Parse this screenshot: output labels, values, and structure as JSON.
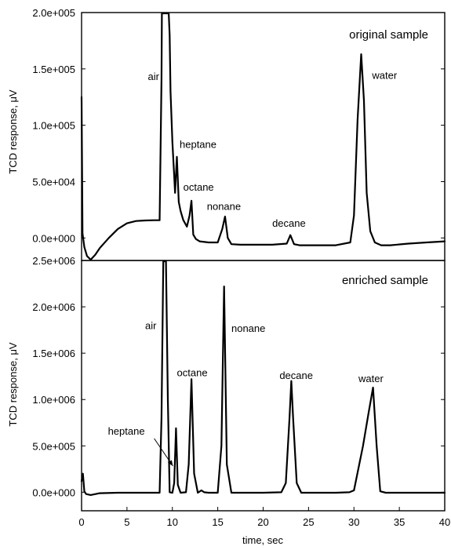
{
  "chart_data": [
    {
      "type": "line",
      "title": "original sample",
      "xlabel": "",
      "ylabel": "TCD response, μV",
      "xlim": [
        0,
        40
      ],
      "ylim": [
        -20000,
        200000
      ],
      "grid": false,
      "yticks": [
        "0.0e+000",
        "5.0e+004",
        "1.0e+005",
        "1.5e+005",
        "2.0e+005"
      ],
      "ytick_values": [
        0,
        50000,
        100000,
        150000,
        200000
      ],
      "annotations": [
        {
          "text": "air",
          "x": 7.3,
          "y": 140000
        },
        {
          "text": "heptane",
          "x": 10.8,
          "y": 80000
        },
        {
          "text": "octane",
          "x": 11.2,
          "y": 42000
        },
        {
          "text": "nonane",
          "x": 13.8,
          "y": 25000
        },
        {
          "text": "decane",
          "x": 21.0,
          "y": 10000
        },
        {
          "text": "water",
          "x": 32.0,
          "y": 141000
        }
      ],
      "series": [
        {
          "x": [
            0,
            0.1,
            0.3,
            0.6,
            1.0,
            1.5,
            2.0,
            3.0,
            4.0,
            5.0,
            6.0,
            7.0,
            8.0,
            8.6,
            8.8,
            8.85,
            8.9,
            9.6,
            9.7,
            9.8,
            10.0,
            10.2,
            10.3,
            10.5,
            10.7,
            10.9,
            11.2,
            11.6,
            11.9,
            12.1,
            12.3,
            12.6,
            13.0,
            14.0,
            15.0,
            15.5,
            15.8,
            16.1,
            16.5,
            17.5,
            19,
            21,
            22.6,
            23.0,
            23.4,
            24,
            26,
            28,
            29.6,
            30.0,
            30.4,
            30.8,
            31.1,
            31.4,
            31.8,
            32.3,
            33,
            34,
            36,
            38,
            40
          ],
          "y": [
            125000,
            4000,
            -8000,
            -16000,
            -20000,
            -15000,
            -9000,
            0,
            8000,
            13000,
            15000,
            15500,
            15700,
            15700,
            140000,
            200000,
            200000,
            200000,
            180000,
            130000,
            85000,
            55000,
            40000,
            72000,
            32000,
            24000,
            16000,
            10000,
            20000,
            33000,
            3000,
            -1000,
            -3000,
            -4000,
            -4000,
            8000,
            19000,
            0,
            -5500,
            -6000,
            -6000,
            -6000,
            -5000,
            2500,
            -5500,
            -6500,
            -6500,
            -6500,
            -4000,
            20000,
            105000,
            163000,
            122000,
            40000,
            6000,
            -4000,
            -6500,
            -6500,
            -5000,
            -4000,
            -3000
          ]
        }
      ]
    },
    {
      "type": "line",
      "title": "enriched sample",
      "xlabel": "time, sec",
      "ylabel": "TCD response, μV",
      "xlim": [
        0,
        40
      ],
      "ylim": [
        -200000,
        2500000
      ],
      "grid": false,
      "yticks": [
        "0.0e+000",
        "5.0e+005",
        "1.0e+006",
        "1.5e+006",
        "2.0e+006",
        "2.5e+006"
      ],
      "ytick_values": [
        0,
        500000,
        1000000,
        1500000,
        2000000,
        2500000
      ],
      "xticks": [
        "0",
        "5",
        "10",
        "15",
        "20",
        "25",
        "30",
        "35",
        "40"
      ],
      "xtick_values": [
        0,
        5,
        10,
        15,
        20,
        25,
        30,
        35,
        40
      ],
      "annotations": [
        {
          "text": "air",
          "x": 7.0,
          "y": 1760000
        },
        {
          "text": "octane",
          "x": 10.5,
          "y": 1250000
        },
        {
          "text": "nonane",
          "x": 16.5,
          "y": 1730000
        },
        {
          "text": "decane",
          "x": 21.8,
          "y": 1220000
        },
        {
          "text": "water",
          "x": 30.5,
          "y": 1190000
        },
        {
          "text": "heptane",
          "x": 2.9,
          "y": 620000
        }
      ],
      "series": [
        {
          "x": [
            0,
            0.15,
            0.3,
            0.5,
            1.0,
            2.0,
            4.0,
            6.0,
            8.0,
            8.6,
            8.8,
            9.0,
            9.3,
            9.5,
            9.7,
            10.0,
            10.2,
            10.4,
            10.6,
            10.9,
            11.5,
            11.8,
            12.1,
            12.4,
            12.8,
            13.2,
            13.5,
            14.0,
            15.0,
            15.4,
            15.7,
            16.0,
            16.5,
            18,
            20,
            22,
            22.5,
            22.9,
            23.1,
            23.3,
            23.7,
            24.2,
            26,
            28,
            29.5,
            30.0,
            31.0,
            31.6,
            32.1,
            32.5,
            32.9,
            33.5,
            35,
            37,
            40
          ],
          "y": [
            120000,
            200000,
            10000,
            -20000,
            -30000,
            -10000,
            -5000,
            -5000,
            -5000,
            -5000,
            800000,
            2500000,
            2500000,
            1000000,
            0,
            -5000,
            100000,
            690000,
            80000,
            -5000,
            0,
            300000,
            1220000,
            200000,
            -5000,
            20000,
            0,
            -5000,
            -5000,
            500000,
            2220000,
            300000,
            -5000,
            -5000,
            -5000,
            0,
            100000,
            800000,
            1200000,
            800000,
            100000,
            -5000,
            -5000,
            -5000,
            0,
            20000,
            500000,
            850000,
            1130000,
            500000,
            10000,
            -5000,
            -5000,
            -5000,
            -5000
          ]
        }
      ]
    }
  ]
}
